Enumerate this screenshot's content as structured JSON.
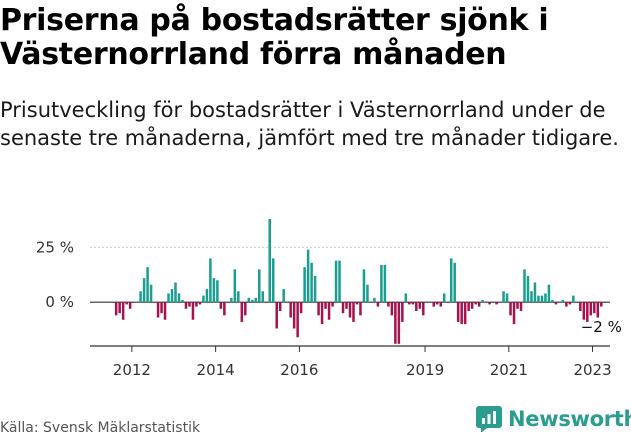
{
  "header": {
    "title": "Priserna på bostadsrätter sjönk i Västernorrland förra månaden",
    "subtitle": "Prisutveckling för bostadsrätter i Västernorrland under de senaste tre månaderna, jämfört med tre månader tidigare."
  },
  "footer": {
    "source": "Källa: Svensk Mäklarstatistik",
    "brand": "Newsworthy"
  },
  "colors": {
    "positive": "#1a9e8f",
    "negative": "#a5134f",
    "axis": "#333333",
    "grid": "#d4d4d4",
    "brand": "#2a9d8f"
  },
  "chart_data": {
    "type": "bar",
    "x_start": "2011-01",
    "x_end": "2023-06",
    "ylim": [
      -20,
      38
    ],
    "yticks": [
      {
        "value": 25,
        "label": "25 %"
      },
      {
        "value": 0,
        "label": "0 %"
      }
    ],
    "xticks": [
      {
        "date": "2012-01",
        "label": "2012"
      },
      {
        "date": "2014-01",
        "label": "2014"
      },
      {
        "date": "2016-01",
        "label": "2016"
      },
      {
        "date": "2019-01",
        "label": "2019"
      },
      {
        "date": "2021-01",
        "label": "2021"
      },
      {
        "date": "2023-01",
        "label": "2023"
      }
    ],
    "annotation": {
      "date": "2023-03",
      "value": -2,
      "label": "−2 %"
    },
    "series": [
      {
        "x": [
          "2011-08",
          "2011-09",
          "2011-10",
          "2011-11",
          "2011-12",
          "2012-01",
          "2012-02",
          "2012-03",
          "2012-04",
          "2012-05",
          "2012-06",
          "2012-07",
          "2012-08",
          "2012-09",
          "2012-10",
          "2012-11",
          "2012-12",
          "2013-01",
          "2013-02",
          "2013-03",
          "2013-04",
          "2013-05",
          "2013-06",
          "2013-07",
          "2013-08",
          "2013-09",
          "2013-10",
          "2013-11",
          "2013-12",
          "2014-01",
          "2014-02",
          "2014-03",
          "2014-04",
          "2014-05",
          "2014-06",
          "2014-07",
          "2014-08",
          "2014-09",
          "2014-10",
          "2014-11",
          "2014-12",
          "2015-01",
          "2015-02",
          "2015-03",
          "2015-04",
          "2015-05",
          "2015-06",
          "2015-07",
          "2015-08",
          "2015-09",
          "2015-10",
          "2015-11",
          "2015-12",
          "2016-01",
          "2016-02",
          "2016-03",
          "2016-04",
          "2016-05",
          "2016-06",
          "2016-07",
          "2016-08",
          "2016-09",
          "2016-10",
          "2016-11",
          "2016-12",
          "2017-01",
          "2017-02",
          "2017-03",
          "2017-04",
          "2017-05",
          "2017-06",
          "2017-07",
          "2017-08",
          "2017-09",
          "2017-10",
          "2017-11",
          "2017-12",
          "2018-01",
          "2018-02",
          "2018-03",
          "2018-04",
          "2018-05",
          "2018-06",
          "2018-07",
          "2018-08",
          "2018-09",
          "2018-10",
          "2018-11",
          "2018-12",
          "2019-01",
          "2019-02",
          "2019-03",
          "2019-04",
          "2019-05",
          "2019-06",
          "2019-07",
          "2019-08",
          "2019-09",
          "2019-10",
          "2019-11",
          "2019-12",
          "2020-01",
          "2020-02",
          "2020-03",
          "2020-04",
          "2020-05",
          "2020-06",
          "2020-07",
          "2020-08",
          "2020-09",
          "2020-10",
          "2020-11",
          "2020-12",
          "2021-01",
          "2021-02",
          "2021-03",
          "2021-04",
          "2021-05",
          "2021-06",
          "2021-07",
          "2021-08",
          "2021-09",
          "2021-10",
          "2021-11",
          "2021-12",
          "2022-01",
          "2022-02",
          "2022-03",
          "2022-04",
          "2022-05",
          "2022-06",
          "2022-07",
          "2022-08",
          "2022-09",
          "2022-10",
          "2022-11",
          "2022-12",
          "2023-01",
          "2023-02",
          "2023-03"
        ],
        "values": [
          -6,
          -5,
          -8,
          -1,
          -3,
          0,
          0,
          5,
          11,
          16,
          8,
          0,
          -7,
          -5,
          -8,
          4,
          6,
          9,
          4,
          1,
          -3,
          -2,
          -8,
          -2,
          -1,
          3,
          6,
          20,
          11,
          10,
          -3,
          -6,
          0,
          2,
          15,
          5,
          -9,
          -6,
          2,
          1,
          2,
          15,
          5,
          0,
          38,
          20,
          -12,
          -4,
          6,
          0,
          -7,
          -12,
          -16,
          -5,
          16,
          24,
          18,
          12,
          -6,
          -10,
          -3,
          -8,
          -2,
          19,
          19,
          -5,
          -3,
          -7,
          -9,
          -1,
          -6,
          15,
          8,
          0,
          2,
          -2,
          17,
          17,
          -2,
          -6,
          -19,
          -19,
          -9,
          4,
          -1,
          -1,
          -4,
          -3,
          -6,
          0,
          0,
          -2,
          -1,
          -2,
          4,
          0,
          20,
          18,
          -9,
          -10,
          -10,
          -4,
          -3,
          -1,
          -2,
          1,
          0,
          -1,
          0,
          -1,
          0,
          5,
          4,
          -6,
          -10,
          -3,
          -4,
          15,
          12,
          5,
          9,
          3,
          3,
          4,
          8,
          1,
          -1,
          0,
          1,
          -2,
          -1,
          3,
          0,
          -4,
          -8,
          -9,
          -6,
          -5,
          -7,
          -2
        ]
      }
    ]
  }
}
